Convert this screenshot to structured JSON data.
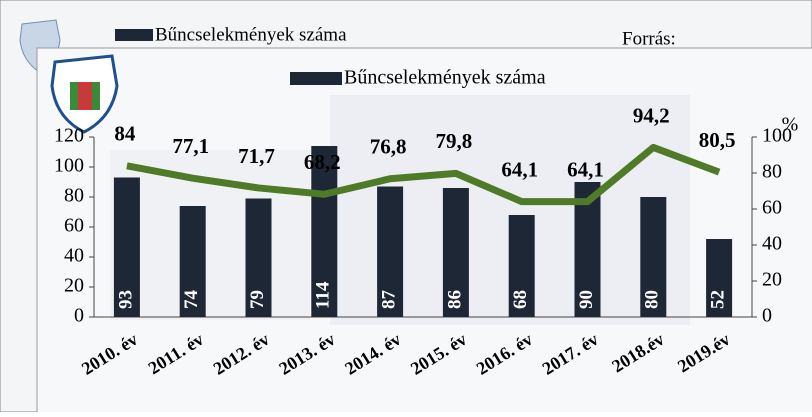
{
  "back_slide": {
    "legend": "Bűncselekmények száma",
    "source_label": "Forrás:"
  },
  "chart_data": {
    "type": "bar_line",
    "legend": "Bűncselekmények száma",
    "y2_label": "%",
    "categories": [
      "2010. év",
      "2011. év",
      "2012. év",
      "2013. év",
      "2014. év",
      "2015. év",
      "2016. év",
      "2017. év",
      "2018.év",
      "2019.év"
    ],
    "series": [
      {
        "name": "Bűncselekmények száma",
        "type": "bar",
        "color": "#1e2735",
        "values": [
          93,
          74,
          79,
          114,
          87,
          86,
          68,
          90,
          80,
          52
        ]
      },
      {
        "type": "line",
        "axis": "y2",
        "color": "#4f7a28",
        "values": [
          84,
          77.1,
          71.7,
          68.2,
          76.8,
          79.8,
          64.1,
          64.1,
          94.2,
          80.5
        ],
        "value_labels": [
          "84",
          "77,1",
          "71,7",
          "68,2",
          "76,8",
          "79,8",
          "64,1",
          "64,1",
          "94,2",
          "80,5"
        ]
      }
    ],
    "ylim": [
      0,
      120
    ],
    "yticks": [
      0,
      20,
      40,
      60,
      80,
      100,
      120
    ],
    "y2lim": [
      0,
      100
    ],
    "y2ticks": [
      0,
      20,
      40,
      60,
      80,
      100
    ]
  }
}
